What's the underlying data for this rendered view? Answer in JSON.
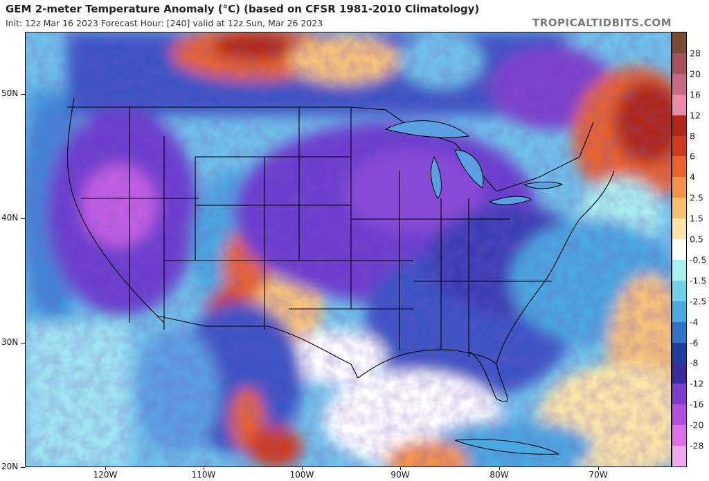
{
  "header": {
    "title": "GEM 2-meter Temperature Anomaly (°C) (based on CFSR 1981-2010 Climatology)",
    "subtitle": "Init: 12z Mar 16 2023   Forecast Hour: [240]   valid at 12z Sun, Mar 26 2023",
    "brand": "TROPICALTIDBITS.COM"
  },
  "map": {
    "latitude_labels": [
      "50N",
      "40N",
      "30N",
      "20N"
    ],
    "longitude_labels": [
      "120W",
      "110W",
      "100W",
      "90W",
      "80W",
      "70W"
    ],
    "extent": {
      "lon_min": -128,
      "lon_max": -62,
      "lat_min": 20,
      "lat_max": 55
    }
  },
  "colorbar": {
    "labels": [
      "28",
      "20",
      "16",
      "12",
      "8",
      "6",
      "4",
      "2.5",
      "1.5",
      "0.5",
      "-0.5",
      "-1.5",
      "-2.5",
      "-4",
      "-6",
      "-8",
      "-12",
      "-16",
      "-20",
      "-28"
    ],
    "colors": [
      "#7a4a34",
      "#a8525a",
      "#c86a84",
      "#e88aa8",
      "#b02618",
      "#cf3a1e",
      "#e8642e",
      "#f39248",
      "#f8bf70",
      "#fbe6a8",
      "#ffffff",
      "#aaf0f0",
      "#70d2ea",
      "#4aa8e0",
      "#2f74c8",
      "#1f3f9c",
      "#3a2ca0",
      "#7b3fcc",
      "#b24fe0",
      "#e070e8",
      "#f2a8ee"
    ]
  },
  "colors": {
    "cold_deep": "#6a3ccf",
    "cold_mid": "#3b52c4",
    "cold_light": "#5aa0e2",
    "neutral": "#ffffff",
    "warm_light": "#f6c27a",
    "warm_mid": "#e8642e",
    "warm_deep": "#b02618"
  }
}
